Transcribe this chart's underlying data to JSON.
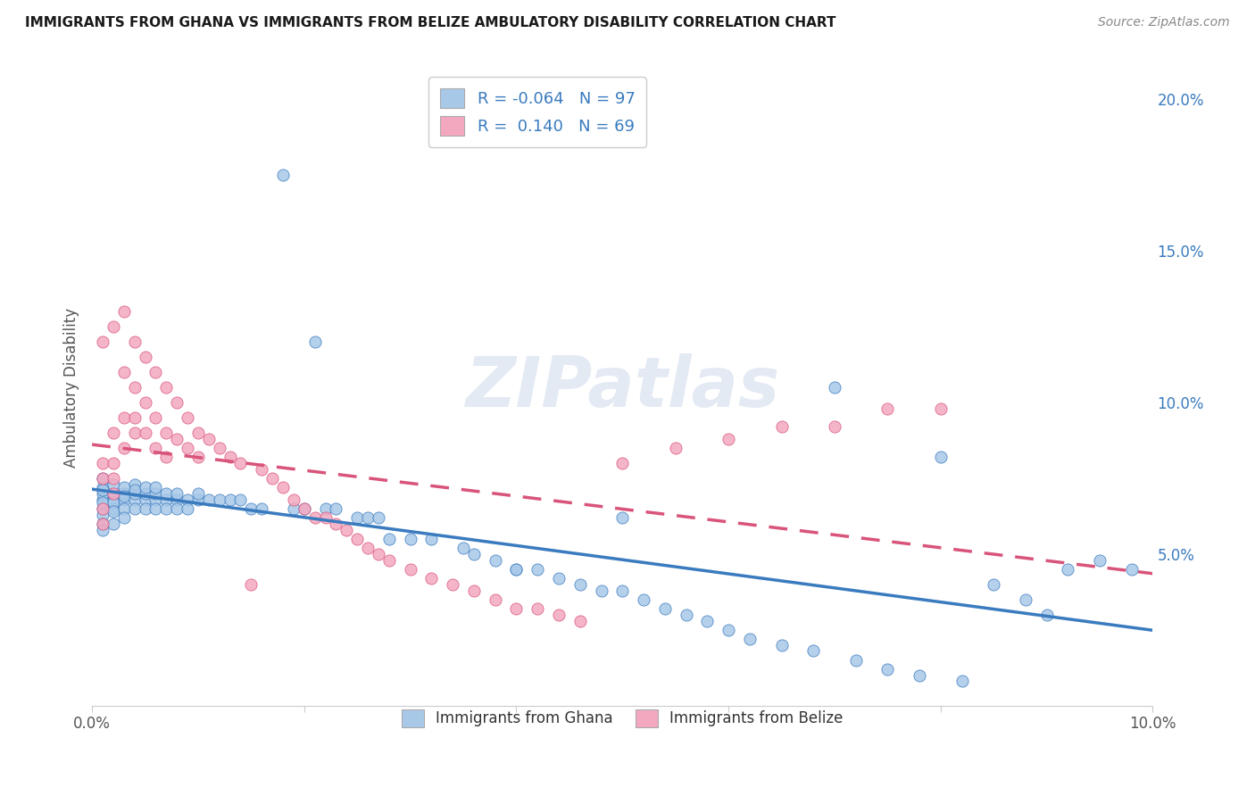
{
  "title": "IMMIGRANTS FROM GHANA VS IMMIGRANTS FROM BELIZE AMBULATORY DISABILITY CORRELATION CHART",
  "source": "Source: ZipAtlas.com",
  "ylabel": "Ambulatory Disability",
  "xlim": [
    0.0,
    0.1
  ],
  "ylim": [
    0.0,
    0.21
  ],
  "yticks": [
    0.05,
    0.1,
    0.15,
    0.2
  ],
  "ytick_labels": [
    "5.0%",
    "10.0%",
    "15.0%",
    "20.0%"
  ],
  "ghana_R": -0.064,
  "ghana_N": 97,
  "belize_R": 0.14,
  "belize_N": 69,
  "ghana_color": "#a8c8e8",
  "belize_color": "#f4a8c0",
  "ghana_line_color": "#3a7bbf",
  "belize_line_color": "#d9547a",
  "watermark": "ZIPatlas",
  "legend_label_ghana": "Immigrants from Ghana",
  "legend_label_belize": "Immigrants from Belize",
  "ghana_x": [
    0.001,
    0.001,
    0.001,
    0.001,
    0.001,
    0.001,
    0.001,
    0.001,
    0.001,
    0.001,
    0.002,
    0.002,
    0.002,
    0.002,
    0.002,
    0.002,
    0.002,
    0.003,
    0.003,
    0.003,
    0.003,
    0.003,
    0.003,
    0.004,
    0.004,
    0.004,
    0.004,
    0.004,
    0.005,
    0.005,
    0.005,
    0.005,
    0.006,
    0.006,
    0.006,
    0.006,
    0.007,
    0.007,
    0.007,
    0.008,
    0.008,
    0.008,
    0.009,
    0.009,
    0.01,
    0.01,
    0.011,
    0.012,
    0.013,
    0.014,
    0.015,
    0.016,
    0.018,
    0.019,
    0.02,
    0.021,
    0.022,
    0.023,
    0.025,
    0.026,
    0.027,
    0.028,
    0.03,
    0.032,
    0.035,
    0.036,
    0.038,
    0.04,
    0.042,
    0.044,
    0.046,
    0.048,
    0.05,
    0.052,
    0.054,
    0.056,
    0.058,
    0.06,
    0.062,
    0.065,
    0.068,
    0.07,
    0.072,
    0.075,
    0.078,
    0.08,
    0.082,
    0.085,
    0.088,
    0.09,
    0.092,
    0.095,
    0.098,
    0.04,
    0.05
  ],
  "ghana_y": [
    0.068,
    0.07,
    0.072,
    0.075,
    0.065,
    0.063,
    0.06,
    0.058,
    0.071,
    0.067,
    0.068,
    0.07,
    0.073,
    0.065,
    0.06,
    0.067,
    0.064,
    0.068,
    0.07,
    0.072,
    0.065,
    0.062,
    0.069,
    0.068,
    0.07,
    0.073,
    0.065,
    0.071,
    0.068,
    0.07,
    0.072,
    0.065,
    0.068,
    0.07,
    0.072,
    0.065,
    0.068,
    0.07,
    0.065,
    0.068,
    0.07,
    0.065,
    0.068,
    0.065,
    0.068,
    0.07,
    0.068,
    0.068,
    0.068,
    0.068,
    0.065,
    0.065,
    0.175,
    0.065,
    0.065,
    0.12,
    0.065,
    0.065,
    0.062,
    0.062,
    0.062,
    0.055,
    0.055,
    0.055,
    0.052,
    0.05,
    0.048,
    0.045,
    0.045,
    0.042,
    0.04,
    0.038,
    0.038,
    0.035,
    0.032,
    0.03,
    0.028,
    0.025,
    0.022,
    0.02,
    0.018,
    0.105,
    0.015,
    0.012,
    0.01,
    0.082,
    0.008,
    0.04,
    0.035,
    0.03,
    0.045,
    0.048,
    0.045,
    0.045,
    0.062
  ],
  "belize_x": [
    0.001,
    0.001,
    0.001,
    0.001,
    0.001,
    0.002,
    0.002,
    0.002,
    0.002,
    0.002,
    0.003,
    0.003,
    0.003,
    0.003,
    0.004,
    0.004,
    0.004,
    0.004,
    0.005,
    0.005,
    0.005,
    0.006,
    0.006,
    0.006,
    0.007,
    0.007,
    0.007,
    0.008,
    0.008,
    0.009,
    0.009,
    0.01,
    0.01,
    0.011,
    0.012,
    0.013,
    0.014,
    0.015,
    0.016,
    0.017,
    0.018,
    0.019,
    0.02,
    0.021,
    0.022,
    0.023,
    0.024,
    0.025,
    0.026,
    0.027,
    0.028,
    0.03,
    0.032,
    0.034,
    0.036,
    0.038,
    0.04,
    0.042,
    0.044,
    0.046,
    0.05,
    0.055,
    0.06,
    0.065,
    0.07,
    0.075,
    0.08
  ],
  "belize_y": [
    0.12,
    0.08,
    0.075,
    0.065,
    0.06,
    0.125,
    0.09,
    0.08,
    0.075,
    0.07,
    0.13,
    0.11,
    0.095,
    0.085,
    0.12,
    0.105,
    0.095,
    0.09,
    0.115,
    0.1,
    0.09,
    0.11,
    0.095,
    0.085,
    0.105,
    0.09,
    0.082,
    0.1,
    0.088,
    0.095,
    0.085,
    0.09,
    0.082,
    0.088,
    0.085,
    0.082,
    0.08,
    0.04,
    0.078,
    0.075,
    0.072,
    0.068,
    0.065,
    0.062,
    0.062,
    0.06,
    0.058,
    0.055,
    0.052,
    0.05,
    0.048,
    0.045,
    0.042,
    0.04,
    0.038,
    0.035,
    0.032,
    0.032,
    0.03,
    0.028,
    0.08,
    0.085,
    0.088,
    0.092,
    0.092,
    0.098,
    0.098
  ]
}
